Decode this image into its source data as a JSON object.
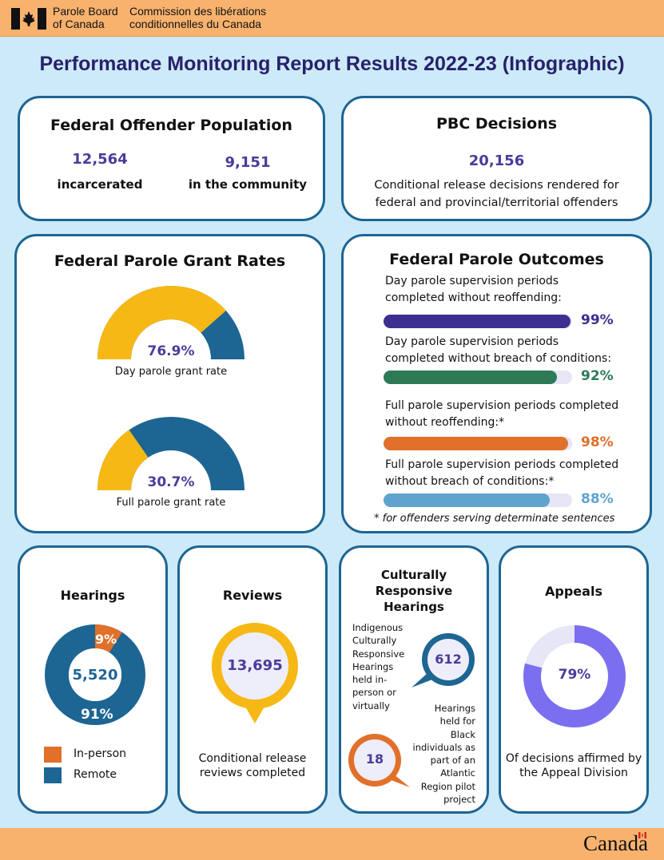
{
  "header": {
    "org_en_line1": "Parole Board",
    "org_en_line2": "of Canada",
    "org_fr_line1": "Commission des libérations",
    "org_fr_line2": "conditionnelles du Canada"
  },
  "title": "Performance Monitoring Report Results 2022-23 (Infographic)",
  "population": {
    "title": "Federal Offender Population",
    "incarcerated_value": "12,564",
    "incarcerated_label": "incarcerated",
    "community_value": "9,151",
    "community_label": "in the community"
  },
  "decisions": {
    "title": "PBC Decisions",
    "value": "20,156",
    "desc_line1": "Conditional release decisions rendered for",
    "desc_line2": "federal and provincial/territorial offenders"
  },
  "grant_rates": {
    "title": "Federal Parole Grant Rates",
    "day": {
      "value_text": "76.9%",
      "value": 76.9,
      "label": "Day parole grant rate"
    },
    "full": {
      "value_text": "30.7%",
      "value": 30.7,
      "label": "Full parole grant rate"
    }
  },
  "outcomes": {
    "title": "Federal Parole Outcomes",
    "items": [
      {
        "line1": "Day parole supervision periods",
        "line2": "completed without reoffending:",
        "value_text": "99%",
        "value": 99,
        "color": "#3d2f8f"
      },
      {
        "line1": "Day parole supervision periods",
        "line2": "completed without breach of conditions:",
        "value_text": "92%",
        "value": 92,
        "color": "#2e7a57"
      },
      {
        "line1": "Full parole supervision periods completed",
        "line2": "without reoffending:*",
        "value_text": "98%",
        "value": 98,
        "color": "#e0702a"
      },
      {
        "line1": "Full parole supervision periods completed",
        "line2": "without breach of conditions:*",
        "value_text": "88%",
        "value": 88,
        "color": "#5fa3cf"
      }
    ],
    "footnote": "* for offenders serving determinate sentences"
  },
  "hearings": {
    "title": "Hearings",
    "total": "5,520",
    "inperson_pct_text": "9%",
    "inperson_pct": 9,
    "remote_pct_text": "91%",
    "remote_pct": 91,
    "legend_inperson": "In-person",
    "legend_remote": "Remote"
  },
  "reviews": {
    "title": "Reviews",
    "value": "13,695",
    "desc_line1": "Conditional release",
    "desc_line2": "reviews completed"
  },
  "culturally": {
    "title_line1": "Culturally",
    "title_line2": "Responsive",
    "title_line3": "Hearings",
    "indigenous_value": "612",
    "indigenous_lines": [
      "Indigenous",
      "Culturally",
      "Responsive",
      "Hearings",
      "held in-",
      "person or",
      "virtually"
    ],
    "black_value": "18",
    "black_lines": [
      "Hearings",
      "held for",
      "Black",
      "individuals as",
      "part of an",
      "Atlantic",
      "Region pilot",
      "project"
    ]
  },
  "appeals": {
    "title": "Appeals",
    "value_text": "79%",
    "value": 79,
    "desc_line1": "Of decisions affirmed by",
    "desc_line2": "the Appeal Division"
  },
  "footer": {
    "wordmark": "Canada"
  },
  "colors": {
    "navy": "#28216a",
    "purple": "#4b3b9a",
    "blue": "#1d6593",
    "yellow": "#f6b814",
    "orange": "#e0702a",
    "lavender": "#7b6ff0"
  }
}
